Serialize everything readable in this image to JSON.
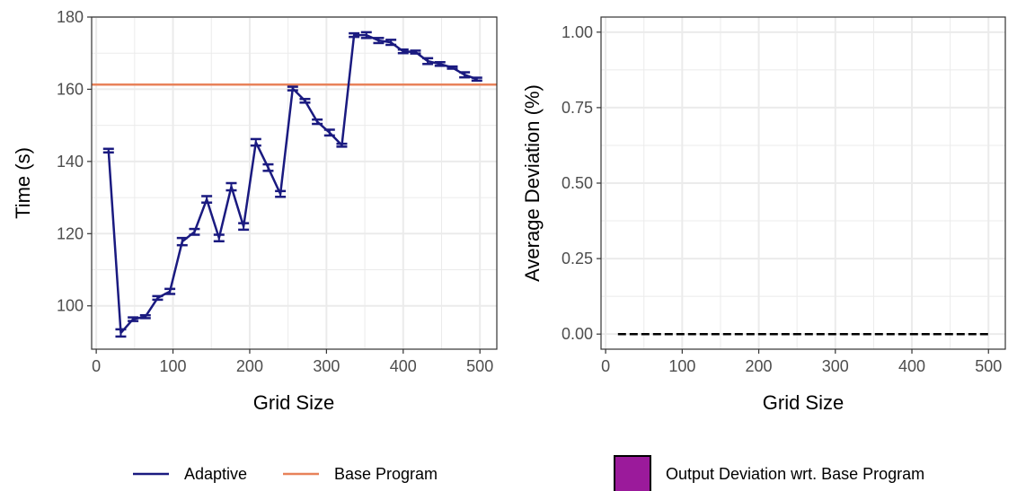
{
  "colors": {
    "adaptive": "#1a1a80",
    "base": "#e8825a",
    "deviation_line": "#000000",
    "deviation_fill": "#9b1a9b",
    "grid": "#ebebeb",
    "panel_border": "#333333"
  },
  "chart_data": [
    {
      "type": "line",
      "title": "",
      "xlabel": "Grid Size",
      "ylabel": "Time (s)",
      "xlim": [
        -6,
        522
      ],
      "ylim": [
        88,
        180
      ],
      "xticks": [
        0,
        100,
        200,
        300,
        400,
        500
      ],
      "yticks": [
        100,
        120,
        140,
        160,
        180
      ],
      "grid": true,
      "series": [
        {
          "name": "Adaptive",
          "error_bars": true,
          "points": [
            {
              "x": 16,
              "y": 143.0,
              "err": 0.5
            },
            {
              "x": 32,
              "y": 92.5,
              "err": 1.0
            },
            {
              "x": 48,
              "y": 96.3,
              "err": 0.5
            },
            {
              "x": 64,
              "y": 97.0,
              "err": 0.4
            },
            {
              "x": 80,
              "y": 102.2,
              "err": 0.5
            },
            {
              "x": 96,
              "y": 104.0,
              "err": 0.7
            },
            {
              "x": 112,
              "y": 117.8,
              "err": 1.0
            },
            {
              "x": 128,
              "y": 120.5,
              "err": 0.8
            },
            {
              "x": 144,
              "y": 129.5,
              "err": 0.9
            },
            {
              "x": 160,
              "y": 118.8,
              "err": 0.9
            },
            {
              "x": 176,
              "y": 133.0,
              "err": 1.0
            },
            {
              "x": 192,
              "y": 122.0,
              "err": 0.9
            },
            {
              "x": 208,
              "y": 145.3,
              "err": 0.9
            },
            {
              "x": 224,
              "y": 138.3,
              "err": 0.9
            },
            {
              "x": 240,
              "y": 131.0,
              "err": 0.8
            },
            {
              "x": 256,
              "y": 160.2,
              "err": 0.5
            },
            {
              "x": 272,
              "y": 156.8,
              "err": 0.5
            },
            {
              "x": 288,
              "y": 151.0,
              "err": 0.6
            },
            {
              "x": 304,
              "y": 148.0,
              "err": 0.8
            },
            {
              "x": 320,
              "y": 144.5,
              "err": 0.4
            },
            {
              "x": 336,
              "y": 175.0,
              "err": 0.5
            },
            {
              "x": 352,
              "y": 175.0,
              "err": 0.8
            },
            {
              "x": 368,
              "y": 173.5,
              "err": 0.7
            },
            {
              "x": 384,
              "y": 173.0,
              "err": 0.7
            },
            {
              "x": 400,
              "y": 170.5,
              "err": 0.5
            },
            {
              "x": 416,
              "y": 170.3,
              "err": 0.4
            },
            {
              "x": 432,
              "y": 167.8,
              "err": 0.8
            },
            {
              "x": 448,
              "y": 167.0,
              "err": 0.5
            },
            {
              "x": 464,
              "y": 166.0,
              "err": 0.3
            },
            {
              "x": 480,
              "y": 164.0,
              "err": 0.7
            },
            {
              "x": 496,
              "y": 162.8,
              "err": 0.4
            }
          ]
        },
        {
          "name": "Base Program",
          "hline": 161.3
        }
      ],
      "legend": {
        "position": "bottom",
        "entries": [
          "Adaptive",
          "Base Program"
        ]
      }
    },
    {
      "type": "line",
      "title": "",
      "xlabel": "Grid Size",
      "ylabel": "Average Deviation (%)",
      "xlim": [
        -6,
        522
      ],
      "ylim": [
        -0.05,
        1.05
      ],
      "xticks": [
        0,
        100,
        200,
        300,
        400,
        500
      ],
      "yticks": [
        0.0,
        0.25,
        0.5,
        0.75,
        1.0
      ],
      "ytick_labels": [
        "0.00",
        "0.25",
        "0.50",
        "0.75",
        "1.00"
      ],
      "grid": true,
      "series": [
        {
          "name": "Output Deviation wrt. Base Program",
          "style": "dashed",
          "x": [
            16,
            32,
            48,
            64,
            80,
            96,
            112,
            128,
            144,
            160,
            176,
            192,
            208,
            224,
            240,
            256,
            272,
            288,
            304,
            320,
            336,
            352,
            368,
            384,
            400,
            416,
            432,
            448,
            464,
            480,
            496,
            500
          ],
          "y": [
            0,
            0,
            0,
            0,
            0,
            0,
            0,
            0,
            0,
            0,
            0,
            0,
            0,
            0,
            0,
            0,
            0,
            0,
            0,
            0,
            0,
            0,
            0,
            0,
            0,
            0,
            0,
            0,
            0,
            0,
            0,
            0
          ]
        }
      ],
      "legend": {
        "position": "bottom",
        "entries": [
          "Output Deviation wrt. Base Program"
        ]
      }
    }
  ]
}
